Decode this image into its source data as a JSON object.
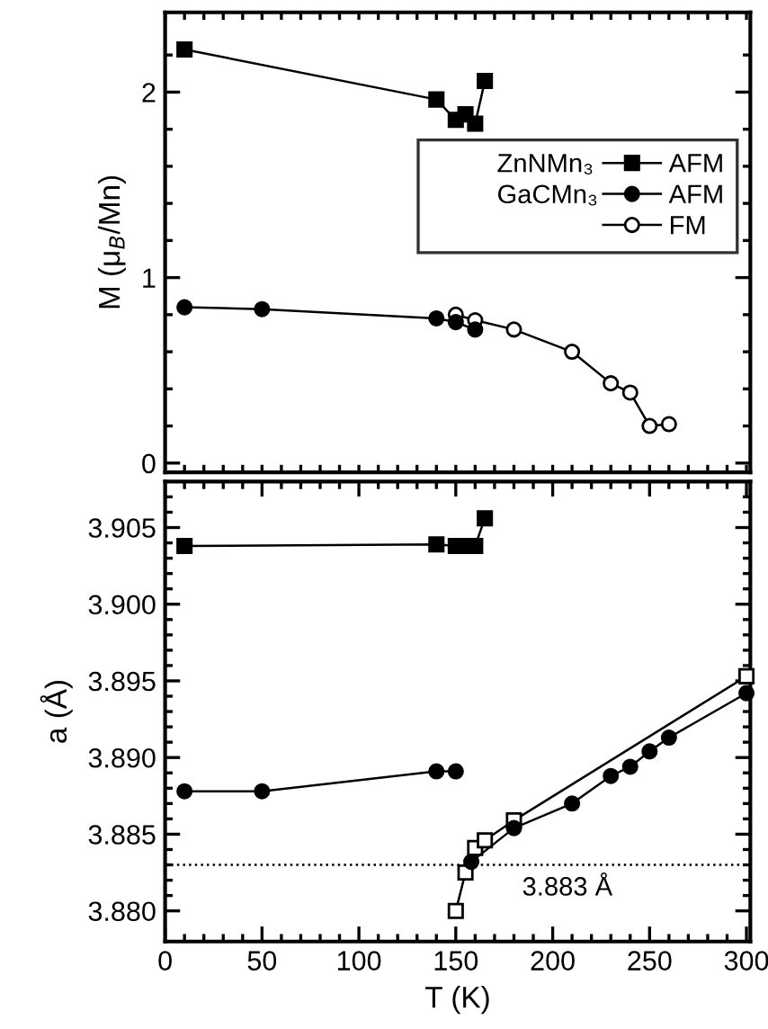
{
  "chart_data": [
    {
      "type": "line",
      "ylabel": "M (μ$_{B}$/Mn)",
      "xlim": [
        0,
        302
      ],
      "ylim": [
        -0.05,
        2.43
      ],
      "tick_labels": "y",
      "legend": "right",
      "grid": false,
      "annotations": [
        "ZnNMn₃",
        "GaCMn₃"
      ],
      "xticks": [
        {
          "value": 0,
          "label": null
        },
        {
          "value": 10,
          "label": null
        },
        {
          "value": 20,
          "label": null
        },
        {
          "value": 30,
          "label": null
        },
        {
          "value": 40,
          "label": null
        },
        {
          "value": 50,
          "label": null
        },
        {
          "value": 60,
          "label": null
        },
        {
          "value": 70,
          "label": null
        },
        {
          "value": 80,
          "label": null
        },
        {
          "value": 90,
          "label": null
        },
        {
          "value": 100,
          "label": null
        },
        {
          "value": 110,
          "label": null
        },
        {
          "value": 120,
          "label": null
        },
        {
          "value": 130,
          "label": null
        },
        {
          "value": 140,
          "label": null
        },
        {
          "value": 150,
          "label": null
        },
        {
          "value": 160,
          "label": null
        },
        {
          "value": 170,
          "label": null
        },
        {
          "value": 180,
          "label": null
        },
        {
          "value": 190,
          "label": null
        },
        {
          "value": 200,
          "label": null
        },
        {
          "value": 210,
          "label": null
        },
        {
          "value": 220,
          "label": null
        },
        {
          "value": 230,
          "label": null
        },
        {
          "value": 240,
          "label": null
        },
        {
          "value": 250,
          "label": null
        },
        {
          "value": 260,
          "label": null
        },
        {
          "value": 270,
          "label": null
        },
        {
          "value": 280,
          "label": null
        },
        {
          "value": 290,
          "label": null
        },
        {
          "value": 300,
          "label": null
        }
      ],
      "yticks": [
        0,
        {
          "value": 0.2,
          "label": null
        },
        {
          "value": 0.4,
          "label": null
        },
        {
          "value": 0.6,
          "label": null
        },
        {
          "value": 0.8,
          "label": null
        },
        1,
        {
          "value": 1.2,
          "label": null
        },
        {
          "value": 1.4,
          "label": null
        },
        {
          "value": 1.6,
          "label": null
        },
        {
          "value": 1.8,
          "label": null
        },
        2,
        {
          "value": 2.2,
          "label": null
        }
      ],
      "series": [
        {
          "name": "AFM",
          "color": "#000000",
          "marker": "square",
          "x": [
            10,
            140,
            150,
            155,
            160,
            165
          ],
          "values": [
            2.23,
            1.96,
            1.85,
            1.88,
            1.83,
            2.06
          ]
        },
        {
          "name": "AFM",
          "color": "#000000",
          "marker": "circle",
          "x": [
            10,
            50,
            140,
            150,
            160
          ],
          "values": [
            0.84,
            0.83,
            0.78,
            0.76,
            0.72
          ]
        },
        {
          "name": "FM",
          "color": "#ffffff",
          "marker": "circle",
          "x": [
            150,
            160,
            180,
            210,
            230,
            240,
            250,
            260
          ],
          "values": [
            0.8,
            0.77,
            0.72,
            0.6,
            0.43,
            0.38,
            0.2,
            0.21
          ]
        }
      ]
    },
    {
      "type": "line",
      "xlabel": "T (K)",
      "ylabel": "a (Å)",
      "xlim": [
        0,
        302
      ],
      "ylim": [
        3.878,
        3.908
      ],
      "grid": false,
      "annotations": [
        "3.883 Å"
      ],
      "ref_lines": [
        {
          "axis": "y",
          "value": 3.883,
          "line_style": "dotted",
          "color": "#000000"
        }
      ],
      "xticks": [
        0,
        {
          "value": 10,
          "label": null
        },
        {
          "value": 20,
          "label": null
        },
        {
          "value": 30,
          "label": null
        },
        {
          "value": 40,
          "label": null
        },
        50,
        {
          "value": 60,
          "label": null
        },
        {
          "value": 70,
          "label": null
        },
        {
          "value": 80,
          "label": null
        },
        {
          "value": 90,
          "label": null
        },
        100,
        {
          "value": 110,
          "label": null
        },
        {
          "value": 120,
          "label": null
        },
        {
          "value": 130,
          "label": null
        },
        {
          "value": 140,
          "label": null
        },
        150,
        {
          "value": 160,
          "label": null
        },
        {
          "value": 170,
          "label": null
        },
        {
          "value": 180,
          "label": null
        },
        {
          "value": 190,
          "label": null
        },
        200,
        {
          "value": 210,
          "label": null
        },
        {
          "value": 220,
          "label": null
        },
        {
          "value": 230,
          "label": null
        },
        {
          "value": 240,
          "label": null
        },
        250,
        {
          "value": 260,
          "label": null
        },
        {
          "value": 270,
          "label": null
        },
        {
          "value": 280,
          "label": null
        },
        {
          "value": 290,
          "label": null
        },
        300
      ],
      "yticks": [
        {
          "value": 3.88,
          "label": "3.880"
        },
        {
          "value": 3.881,
          "label": null
        },
        {
          "value": 3.882,
          "label": null
        },
        {
          "value": 3.883,
          "label": null
        },
        {
          "value": 3.884,
          "label": null
        },
        {
          "value": 3.885,
          "label": "3.885"
        },
        {
          "value": 3.886,
          "label": null
        },
        {
          "value": 3.887,
          "label": null
        },
        {
          "value": 3.888,
          "label": null
        },
        {
          "value": 3.889,
          "label": null
        },
        {
          "value": 3.89,
          "label": "3.890"
        },
        {
          "value": 3.891,
          "label": null
        },
        {
          "value": 3.892,
          "label": null
        },
        {
          "value": 3.893,
          "label": null
        },
        {
          "value": 3.894,
          "label": null
        },
        {
          "value": 3.895,
          "label": "3.895"
        },
        {
          "value": 3.896,
          "label": null
        },
        {
          "value": 3.897,
          "label": null
        },
        {
          "value": 3.898,
          "label": null
        },
        {
          "value": 3.899,
          "label": null
        },
        {
          "value": 3.9,
          "label": "3.900"
        },
        {
          "value": 3.901,
          "label": null
        },
        {
          "value": 3.902,
          "label": null
        },
        {
          "value": 3.903,
          "label": null
        },
        {
          "value": 3.904,
          "label": null
        },
        {
          "value": 3.905,
          "label": "3.905"
        },
        {
          "value": 3.906,
          "label": null
        },
        {
          "value": 3.907,
          "label": null
        }
      ],
      "series": [
        {
          "color": "#000000",
          "marker": "square",
          "x": [
            10,
            140,
            150,
            155,
            160,
            165
          ],
          "values": [
            3.9038,
            3.9039,
            3.9038,
            3.9038,
            3.9038,
            3.9056
          ]
        },
        {
          "color": "#000000",
          "marker": "circle",
          "x": [
            10,
            50,
            140,
            150
          ],
          "values": [
            3.8878,
            3.8878,
            3.8891,
            3.8891
          ]
        },
        {
          "color": "#000000",
          "marker": "circle",
          "x": [
            158,
            180,
            210,
            230,
            240,
            250,
            260,
            300
          ],
          "values": [
            3.8832,
            3.8854,
            3.887,
            3.8888,
            3.8894,
            3.8904,
            3.8913,
            3.8942
          ]
        },
        {
          "color": "#ffffff",
          "marker": "square",
          "x": [
            150,
            155,
            160,
            165,
            180,
            300
          ],
          "values": [
            3.88,
            3.8825,
            3.8841,
            3.8846,
            3.8859,
            3.8953
          ]
        }
      ]
    }
  ]
}
